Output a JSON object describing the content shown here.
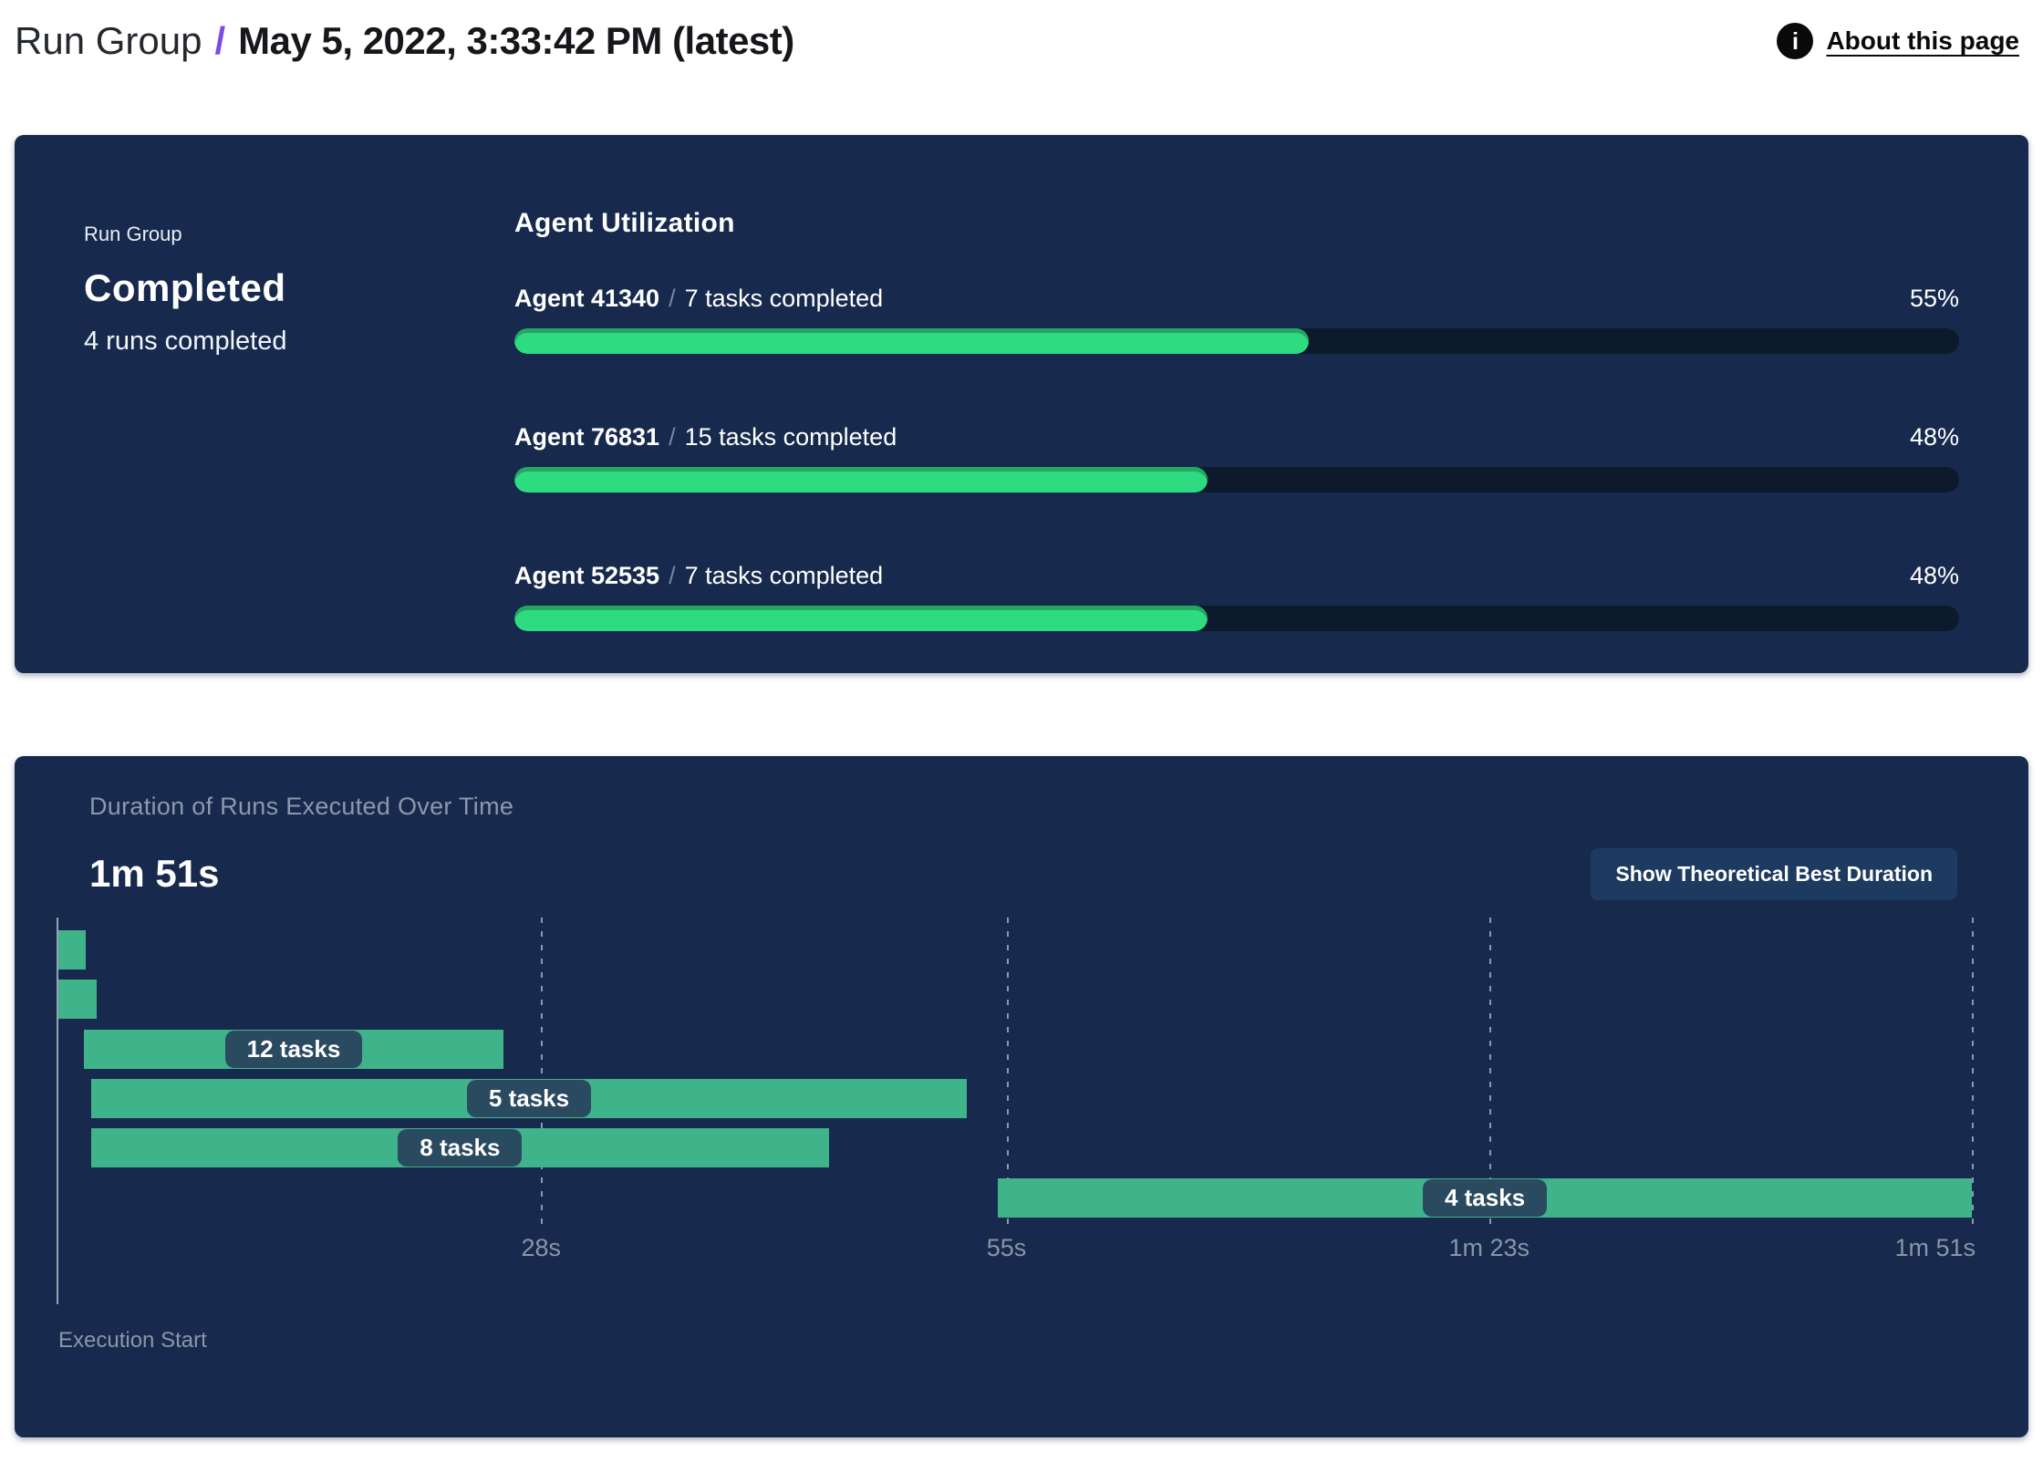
{
  "header": {
    "breadcrumb_root": "Run Group",
    "separator": "/",
    "title": "May 5, 2022, 3:33:42 PM (latest)",
    "about_link": "About this page",
    "info_icon_glyph": "i"
  },
  "summary_panel": {
    "label": "Run Group",
    "status": "Completed",
    "subtext": "4 runs completed",
    "section_title": "Agent Utilization",
    "agents": [
      {
        "name": "Agent 41340",
        "separator": "/",
        "detail": "7 tasks completed",
        "percent": 55,
        "percent_label": "55%"
      },
      {
        "name": "Agent 76831",
        "separator": "/",
        "detail": "15 tasks completed",
        "percent": 48,
        "percent_label": "48%"
      },
      {
        "name": "Agent 52535",
        "separator": "/",
        "detail": "7 tasks completed",
        "percent": 48,
        "percent_label": "48%"
      }
    ]
  },
  "duration_panel": {
    "title": "Duration of Runs Executed Over Time",
    "total_duration": "1m 51s",
    "button_label": "Show Theoretical Best Duration",
    "axis_label": "Execution Start"
  },
  "chart_data": {
    "type": "gantt",
    "title": "Duration of Runs Executed Over Time",
    "total_duration_label": "1m 51s",
    "total_duration_seconds": 111,
    "xlabel": "Execution Start",
    "grid": "dotted-vertical",
    "x_ticks": [
      {
        "label": "28s",
        "seconds": 28
      },
      {
        "label": "55s",
        "seconds": 55
      },
      {
        "label": "1m 23s",
        "seconds": 83
      },
      {
        "label": "1m 51s",
        "seconds": 111
      }
    ],
    "runs": [
      {
        "start_s": 0,
        "end_s": 1.6,
        "label": ""
      },
      {
        "start_s": 0,
        "end_s": 2.2,
        "label": ""
      },
      {
        "start_s": 1.5,
        "end_s": 25.8,
        "label": "12 tasks"
      },
      {
        "start_s": 1.9,
        "end_s": 52.7,
        "label": "5 tasks"
      },
      {
        "start_s": 1.9,
        "end_s": 44.7,
        "label": "8 tasks"
      },
      {
        "start_s": 54.5,
        "end_s": 111,
        "label": "4 tasks"
      }
    ]
  },
  "colors": {
    "panel_navy": "#172A4D",
    "progress_green": "#2EDB81",
    "progress_track": "#0D1A2C",
    "gantt_green": "#3FB38A",
    "pill_navy": "#2A4A60",
    "accent_purple": "#7A4BE8",
    "muted_text": "#8C98AB",
    "button_navy": "#1D3B60"
  }
}
